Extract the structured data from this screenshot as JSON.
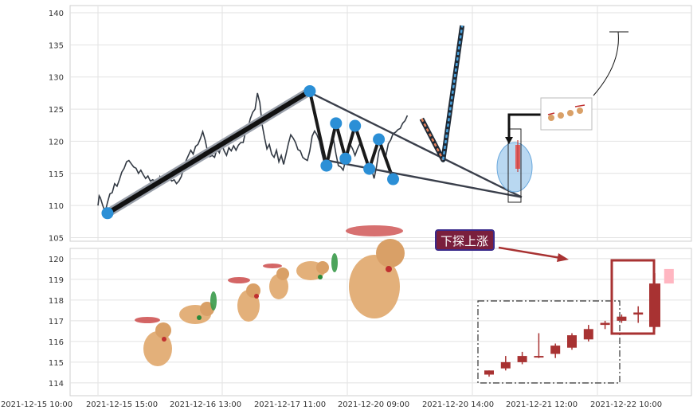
{
  "chart_data": [
    {
      "type": "line",
      "panel": "price-pattern",
      "y_ticks": [
        105,
        110,
        115,
        120,
        125,
        130,
        135,
        140
      ],
      "ylim": [
        104.5,
        141.5
      ],
      "grid": true,
      "price_line": [
        [
          0,
          110.0
        ],
        [
          0.5,
          111.5
        ],
        [
          1,
          111.2
        ],
        [
          2,
          110.0
        ],
        [
          3,
          109.0
        ],
        [
          4,
          110.5
        ],
        [
          5,
          111.8
        ],
        [
          6,
          112.0
        ],
        [
          7,
          113.4
        ],
        [
          8,
          113.0
        ],
        [
          9,
          114.0
        ],
        [
          10,
          115.2
        ],
        [
          11,
          115.8
        ],
        [
          12,
          116.8
        ],
        [
          13,
          117.0
        ],
        [
          14,
          116.5
        ],
        [
          15,
          116.0
        ],
        [
          16,
          115.8
        ],
        [
          17,
          115.0
        ],
        [
          18,
          115.5
        ],
        [
          19,
          114.8
        ],
        [
          20,
          114.2
        ],
        [
          21,
          114.6
        ],
        [
          22,
          113.8
        ],
        [
          23,
          114.0
        ],
        [
          24,
          113.8
        ],
        [
          25,
          113.5
        ],
        [
          26,
          114.5
        ],
        [
          27,
          113.6
        ],
        [
          28,
          114.4
        ],
        [
          29,
          115.0
        ],
        [
          30,
          114.3
        ],
        [
          31,
          113.8
        ],
        [
          32,
          114.0
        ],
        [
          33,
          113.4
        ],
        [
          34,
          113.8
        ],
        [
          35,
          114.5
        ],
        [
          36,
          115.8
        ],
        [
          37,
          117.0
        ],
        [
          38,
          117.8
        ],
        [
          39,
          118.6
        ],
        [
          40,
          118.0
        ],
        [
          41,
          119.2
        ],
        [
          42,
          119.5
        ],
        [
          43,
          120.4
        ],
        [
          44,
          121.5
        ],
        [
          45,
          120.2
        ],
        [
          46,
          118.5
        ],
        [
          47,
          117.6
        ],
        [
          48,
          117.8
        ],
        [
          49,
          117.5
        ],
        [
          50,
          118.8
        ],
        [
          51,
          118.2
        ],
        [
          52,
          119.6
        ],
        [
          53,
          118.5
        ],
        [
          54,
          117.8
        ],
        [
          55,
          119.0
        ],
        [
          56,
          118.5
        ],
        [
          57,
          119.3
        ],
        [
          58,
          118.6
        ],
        [
          59,
          119.4
        ],
        [
          60,
          119.8
        ],
        [
          61,
          119.8
        ],
        [
          62,
          121.5
        ],
        [
          63,
          122.0
        ],
        [
          64,
          123.5
        ],
        [
          65,
          124.5
        ],
        [
          66,
          125.0
        ],
        [
          67,
          127.5
        ],
        [
          68,
          126.0
        ],
        [
          69,
          122.5
        ],
        [
          70,
          120.5
        ],
        [
          71,
          118.8
        ],
        [
          72,
          119.5
        ],
        [
          73,
          118.0
        ],
        [
          74,
          117.5
        ],
        [
          75,
          118.6
        ],
        [
          76,
          116.8
        ],
        [
          77,
          117.8
        ],
        [
          78,
          116.4
        ],
        [
          79,
          118.0
        ],
        [
          80,
          119.6
        ],
        [
          81,
          121.0
        ],
        [
          82,
          120.5
        ],
        [
          83,
          119.8
        ],
        [
          84,
          118.7
        ],
        [
          85,
          118.5
        ],
        [
          86,
          117.5
        ],
        [
          87,
          117.2
        ],
        [
          88,
          117.0
        ],
        [
          89,
          118.5
        ],
        [
          90,
          120.8
        ],
        [
          91,
          121.6
        ],
        [
          92,
          121.0
        ],
        [
          93,
          120.0
        ],
        [
          94,
          118.2
        ],
        [
          95,
          116.7
        ],
        [
          96,
          116.0
        ],
        [
          97,
          117.7
        ],
        [
          98,
          119.5
        ],
        [
          99,
          120.2
        ],
        [
          100,
          118.0
        ],
        [
          101,
          116.2
        ],
        [
          102,
          116.0
        ],
        [
          103,
          115.5
        ],
        [
          104,
          117.0
        ],
        [
          105,
          118.5
        ],
        [
          106,
          119.5
        ],
        [
          107,
          118.8
        ],
        [
          108,
          117.8
        ],
        [
          109,
          118.8
        ],
        [
          110,
          119.6
        ],
        [
          111,
          119.0
        ],
        [
          112,
          118.0
        ],
        [
          113,
          117.0
        ],
        [
          114,
          116.2
        ],
        [
          115,
          115.6
        ],
        [
          116,
          114.2
        ],
        [
          117,
          116.0
        ],
        [
          118,
          118.4
        ],
        [
          119,
          119.3
        ],
        [
          120,
          118.2
        ],
        [
          121,
          117.8
        ],
        [
          122,
          119.6
        ],
        [
          123,
          120.2
        ],
        [
          124,
          121.2
        ],
        [
          125,
          121.4
        ],
        [
          126,
          121.8
        ],
        [
          127,
          122.0
        ],
        [
          128,
          122.8
        ],
        [
          129,
          123.2
        ],
        [
          130,
          124.0
        ]
      ],
      "zigzag": [
        [
          4,
          108.8
        ],
        [
          89,
          127.8
        ],
        [
          96,
          116.2
        ],
        [
          100,
          122.8
        ],
        [
          104,
          117.3
        ],
        [
          108,
          122.4
        ],
        [
          114,
          115.7
        ],
        [
          118,
          120.3
        ],
        [
          124,
          114.1
        ]
      ],
      "channel_upper": [
        [
          89,
          127.6
        ],
        [
          178,
          111.3
        ]
      ],
      "channel_lower": [
        [
          95,
          117.1
        ],
        [
          178,
          111.3
        ]
      ],
      "projection": [
        [
          136,
          123.5
        ],
        [
          145,
          117.1
        ],
        [
          153,
          138.0
        ]
      ]
    },
    {
      "type": "candlestick",
      "panel": "candles",
      "y_ticks": [
        114,
        115,
        116,
        117,
        118,
        119,
        120
      ],
      "ylim": [
        113.4,
        120.3
      ],
      "grid": true,
      "candles": [
        {
          "o": 114.4,
          "h": 114.6,
          "l": 114.3,
          "c": 114.6
        },
        {
          "o": 114.7,
          "h": 115.3,
          "l": 114.6,
          "c": 115.0
        },
        {
          "o": 115.0,
          "h": 115.5,
          "l": 114.9,
          "c": 115.3
        },
        {
          "o": 115.3,
          "h": 116.4,
          "l": 115.2,
          "c": 115.3
        },
        {
          "o": 115.4,
          "h": 115.9,
          "l": 115.2,
          "c": 115.8
        },
        {
          "o": 115.7,
          "h": 116.4,
          "l": 115.6,
          "c": 116.3
        },
        {
          "o": 116.1,
          "h": 116.8,
          "l": 116.0,
          "c": 116.6
        },
        {
          "o": 116.8,
          "h": 117.0,
          "l": 116.6,
          "c": 116.9
        },
        {
          "o": 117.0,
          "h": 117.3,
          "l": 116.9,
          "c": 117.2
        },
        {
          "o": 117.3,
          "h": 117.7,
          "l": 116.9,
          "c": 117.4
        },
        {
          "o": 116.7,
          "h": 119.3,
          "l": 116.6,
          "c": 118.8
        }
      ],
      "ghost_candle": {
        "o": 118.9,
        "h": 119.5,
        "l": 118.8,
        "c": 119.4
      },
      "annotation": "下探上涨"
    }
  ],
  "x_axis": {
    "tick_labels": [
      "2021-12-15 10:00",
      "2021-12-15 15:00",
      "2021-12-16 13:00",
      "2021-12-17 11:00",
      "2021-12-20 09:00",
      "2021-12-20 14:00",
      "2021-12-21 12:00",
      "2021-12-22 10:00"
    ]
  },
  "colors": {
    "zigzag": "#1a1a1a",
    "marker": "#2b8fd6",
    "channel": "#3a3f4b",
    "up_candle": "#a83232",
    "ghost": "#ffb6c1",
    "annotation_bg": "#7a1f3d",
    "annotation_border": "#3a2a8a",
    "highlight_box": "#a83232",
    "arrow": "#a83232"
  }
}
